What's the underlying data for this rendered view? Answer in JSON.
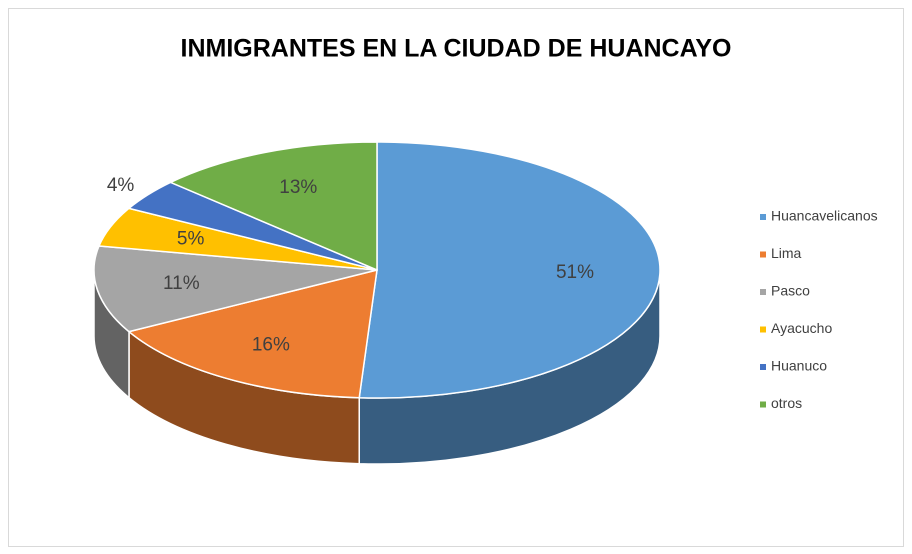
{
  "chart_data": {
    "type": "pie",
    "title": "INMIGRANTES EN LA CIUDAD DE HUANCAYO",
    "categories": [
      "Huancavelicanos",
      "Lima",
      "Pasco",
      "Ayacucho",
      "Huanuco",
      "otros"
    ],
    "values": [
      51,
      16,
      11,
      5,
      4,
      13
    ],
    "value_labels": [
      "51%",
      "16%",
      "11%",
      "5%",
      "4%",
      "13%"
    ],
    "colors": [
      "#5b9bd5",
      "#ed7d31",
      "#a5a5a5",
      "#ffc000",
      "#4472c4",
      "#70ad47"
    ],
    "legend": "right"
  }
}
